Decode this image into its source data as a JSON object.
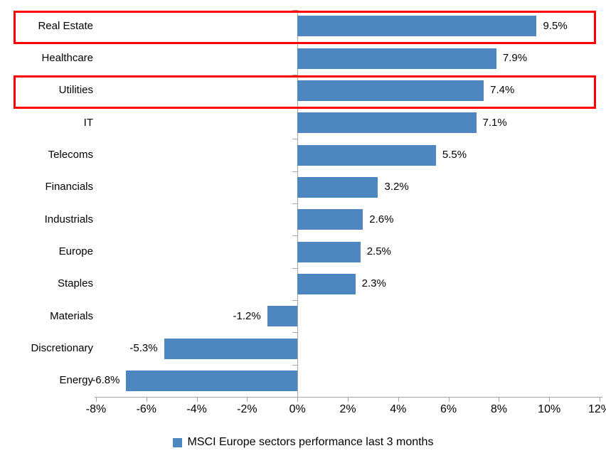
{
  "chart_data": {
    "type": "bar",
    "orientation": "horizontal",
    "title": "",
    "legend": "MSCI Europe sectors performance last 3 months",
    "categories": [
      "Real Estate",
      "Healthcare",
      "Utilities",
      "IT",
      "Telecoms",
      "Financials",
      "Industrials",
      "Europe",
      "Staples",
      "Materials",
      "Discretionary",
      "Energy"
    ],
    "values": [
      9.5,
      7.9,
      7.4,
      7.1,
      5.5,
      3.2,
      2.6,
      2.5,
      2.3,
      -1.2,
      -5.3,
      -6.8
    ],
    "value_labels": [
      "9.5%",
      "7.9%",
      "7.4%",
      "7.1%",
      "5.5%",
      "3.2%",
      "2.6%",
      "2.5%",
      "2.3%",
      "-1.2%",
      "-5.3%",
      "-6.8%"
    ],
    "x_ticks": [
      {
        "value": -8,
        "label": "-8%"
      },
      {
        "value": -6,
        "label": "-6%"
      },
      {
        "value": -4,
        "label": "-4%"
      },
      {
        "value": -2,
        "label": "-2%"
      },
      {
        "value": 0,
        "label": "0%"
      },
      {
        "value": 2,
        "label": "2%"
      },
      {
        "value": 4,
        "label": "4%"
      },
      {
        "value": 6,
        "label": "6%"
      },
      {
        "value": 8,
        "label": "8%"
      },
      {
        "value": 10,
        "label": "10%"
      },
      {
        "value": 12,
        "label": "12%"
      }
    ],
    "xlim": [
      -8,
      12
    ],
    "grid": false,
    "legend_position": "bottom-center",
    "highlighted_categories": [
      "Real Estate",
      "Utilities"
    ],
    "colors": {
      "bar": "#4E86C0",
      "axis": "#A6A6A6",
      "highlight": "#FF0000",
      "text": "#000000"
    }
  }
}
